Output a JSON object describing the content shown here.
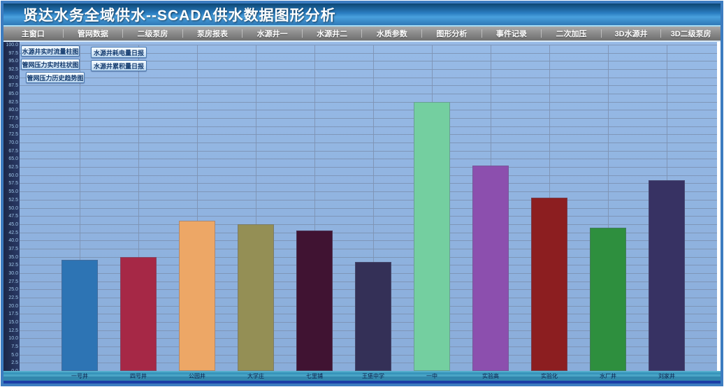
{
  "window": {
    "title": "贤达水务全域供水--SCADA供水数据图形分析"
  },
  "menu": {
    "items": [
      "主窗口",
      "管网数据",
      "二级泵房",
      "泵房报表",
      "水源井一",
      "水源井二",
      "水质参数",
      "图形分析",
      "事件记录",
      "二次加压",
      "3D水源井",
      "3D二级泵房"
    ]
  },
  "toolbar": {
    "buttons_left": [
      "水源井实时流量柱图",
      "管网压力实时柱状图",
      "管网压力历史趋势图"
    ],
    "buttons_right": [
      "水源井耗电量日报",
      "水源井累积量日报"
    ]
  },
  "chart_data": {
    "type": "bar",
    "title": "水源井实时流量柱图",
    "categories": [
      "一号井",
      "四号井",
      "公园井",
      "大学庄",
      "七里铺",
      "王堡中学",
      "一中",
      "实验高",
      "实验化",
      "水厂井",
      "刘家井"
    ],
    "values": [
      34,
      35,
      46,
      45,
      43,
      33.5,
      82.5,
      63,
      53,
      44,
      58.5
    ],
    "bar_colors": [
      "#2d74b4",
      "#a62846",
      "#eda766",
      "#948f55",
      "#401332",
      "#343057",
      "#74cfa0",
      "#8c4fae",
      "#8c1e20",
      "#2e8f3e",
      "#373263"
    ],
    "xlabel": "",
    "ylabel": "",
    "ylim": [
      0,
      100
    ],
    "ytick_step": 2.5,
    "ytick_format_decimals": 1,
    "grid": "horizontal lines every 2.5 units, vertical line at each bar center",
    "legend_position": "none"
  },
  "colors": {
    "frame": "#3c7cc0",
    "titlebar_top": "#0d4672",
    "titlebar_light": "#49a0dd",
    "menubar": "#8c8c8c",
    "plot_bg": "#8fb3e0",
    "grid_line": "#7b91b0",
    "axis_strip_bg": "#22305c",
    "axis_text": "#9fc6e8",
    "x_strip": "#3e9cc0",
    "bottom_bar": "#1c3ea6",
    "button_text": "#123a6e"
  }
}
